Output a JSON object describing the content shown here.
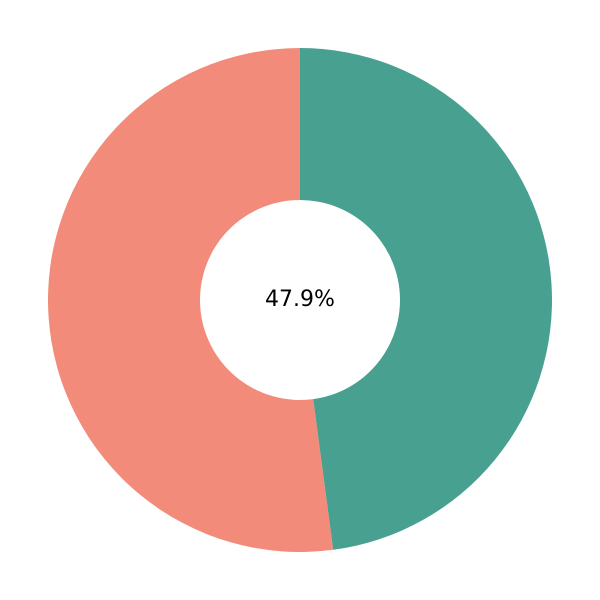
{
  "chart_data": {
    "type": "donut",
    "values": [
      47.9,
      52.1
    ],
    "value_labels": [
      "47.9%",
      null
    ],
    "colors": [
      "#48a090",
      "#f28b79"
    ],
    "start_angle": 90,
    "direction": "clockwise"
  }
}
